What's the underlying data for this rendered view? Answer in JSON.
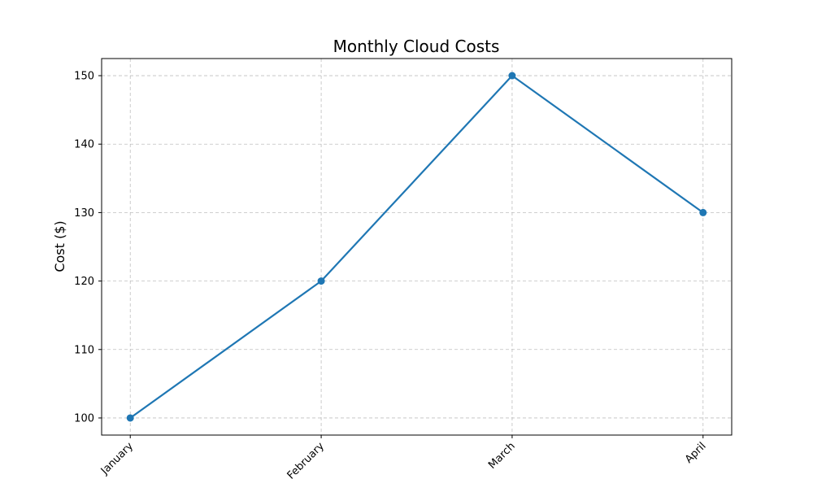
{
  "chart_data": {
    "type": "line",
    "title": "Monthly Cloud Costs",
    "xlabel": "",
    "ylabel": "Cost ($)",
    "categories": [
      "January",
      "February",
      "March",
      "April"
    ],
    "series": [
      {
        "values": [
          100,
          120,
          150,
          130
        ],
        "color": "#1f77b4",
        "marker": "circle"
      }
    ],
    "ylim": [
      97.5,
      152.5
    ],
    "yticks": [
      100,
      110,
      120,
      130,
      140,
      150
    ],
    "grid": true,
    "x_tick_rotation_deg": 45
  }
}
